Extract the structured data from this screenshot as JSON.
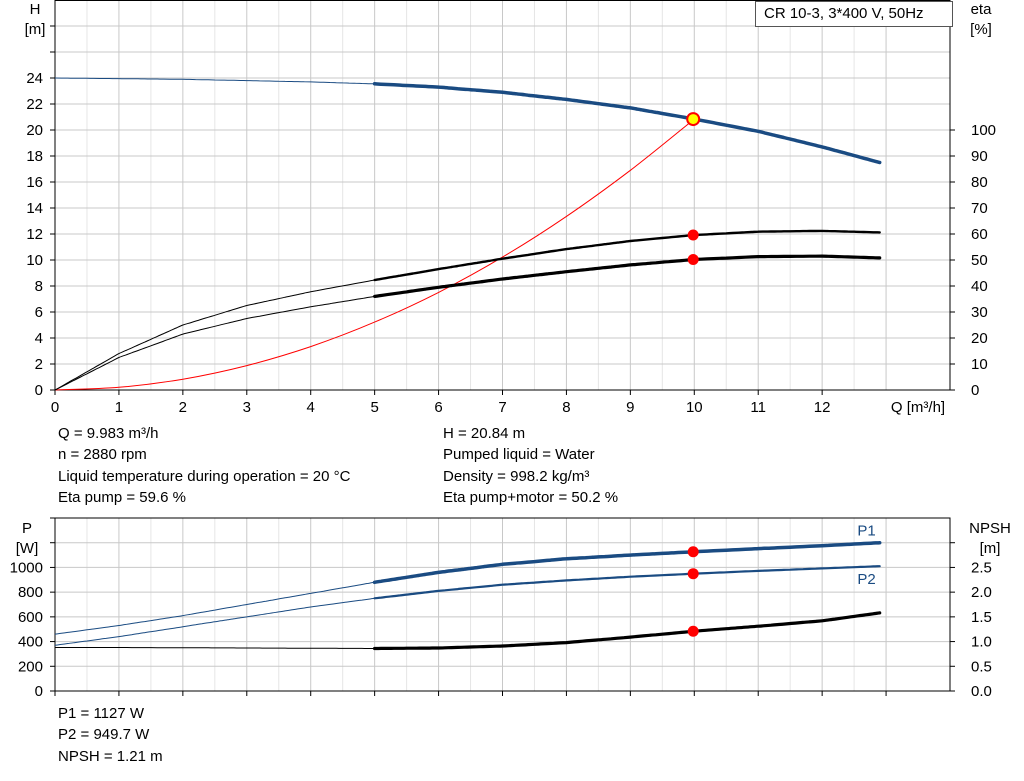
{
  "legend_label": "CR 10-3, 3*400 V, 50Hz",
  "top_info_left": [
    "Q = 9.983 m³/h",
    "n = 2880 rpm",
    "Liquid temperature during operation = 20 °C",
    "Eta pump = 59.6 %"
  ],
  "top_info_right": [
    "H = 20.84 m",
    "Pumped liquid = Water",
    "Density = 998.2 kg/m³",
    "Eta pump+motor = 50.2 %"
  ],
  "bottom_info": [
    "P1 = 1127 W",
    "P2 = 949.7 W",
    "NPSH = 1.21 m"
  ],
  "colors": {
    "head": "#1a4b82",
    "power": "#1a4b82",
    "efficiency": "#000000",
    "system": "#ff0000",
    "grid": "#c8c8c8",
    "marker": "#ff0000",
    "duty_marker": "#ffff00"
  },
  "chart_data": [
    {
      "type": "line",
      "xlabel": "Q [m³/h]",
      "ylabel_left": [
        "H",
        "[m]"
      ],
      "ylabel_right": [
        "eta",
        "[%]"
      ],
      "xlim": [
        0,
        14
      ],
      "ylim_left": [
        0,
        30
      ],
      "ylim_right": [
        0,
        150
      ],
      "xticks": [
        0,
        1,
        2,
        3,
        4,
        5,
        6,
        7,
        8,
        9,
        10,
        11,
        12
      ],
      "yticks_left": [
        0,
        2,
        4,
        6,
        8,
        10,
        12,
        14,
        16,
        18,
        20,
        22,
        24
      ],
      "yticks_right": [
        0,
        10,
        20,
        30,
        40,
        50,
        60,
        70,
        80,
        90,
        100
      ],
      "grid": true,
      "operating_point": {
        "q": 9.983,
        "h": 20.84,
        "eta_pump": 59.6,
        "eta_total": 50.2
      },
      "series": [
        {
          "axis": "left",
          "role": "head",
          "x": [
            0,
            1,
            2,
            3,
            4,
            5,
            6,
            7,
            8,
            9,
            10,
            11,
            12,
            12.9
          ],
          "values": [
            24.0,
            23.95,
            23.9,
            23.8,
            23.7,
            23.55,
            23.3,
            22.9,
            22.35,
            21.7,
            20.84,
            19.9,
            18.7,
            17.5
          ]
        },
        {
          "axis": "left",
          "role": "system",
          "x": [
            0,
            1,
            2,
            3,
            4,
            5,
            6,
            7,
            8,
            9,
            10
          ],
          "values": [
            0,
            0.21,
            0.83,
            1.88,
            3.34,
            5.22,
            7.51,
            10.22,
            13.35,
            16.9,
            20.84
          ]
        },
        {
          "axis": "right",
          "role": "eta_pump",
          "x": [
            0,
            1,
            2,
            3,
            4,
            5,
            6,
            7,
            8,
            9,
            10,
            11,
            12,
            12.9
          ],
          "values": [
            0,
            14,
            25,
            32.5,
            37.8,
            42.3,
            46.5,
            50.5,
            54.2,
            57.3,
            59.6,
            60.9,
            61.2,
            60.6
          ]
        },
        {
          "axis": "right",
          "role": "eta_total",
          "x": [
            0,
            1,
            2,
            3,
            4,
            5,
            6,
            7,
            8,
            9,
            10,
            11,
            12,
            12.9
          ],
          "values": [
            0,
            12.5,
            21.5,
            27.5,
            32,
            36,
            39.5,
            42.7,
            45.5,
            48.1,
            50.2,
            51.3,
            51.5,
            50.8
          ]
        }
      ]
    },
    {
      "type": "line",
      "xlim": [
        0,
        14
      ],
      "ylabel_left": [
        "P",
        "[W]"
      ],
      "ylabel_right": [
        "NPSH",
        "[m]"
      ],
      "ylim_left": [
        0,
        1400
      ],
      "ylim_right": [
        0,
        3.5
      ],
      "yticks_left": [
        0,
        200,
        400,
        600,
        800,
        1000
      ],
      "yticks_right": [
        "0.0",
        "0.5",
        "1.0",
        "1.5",
        "2.0",
        "2.5"
      ],
      "grid": true,
      "series": [
        {
          "axis": "left",
          "name": "P1",
          "x": [
            0,
            1,
            2,
            3,
            4,
            5,
            6,
            7,
            8,
            9,
            10,
            11,
            12,
            12.9
          ],
          "values": [
            460,
            530,
            610,
            700,
            790,
            880,
            960,
            1025,
            1070,
            1100,
            1127,
            1152,
            1176,
            1200
          ]
        },
        {
          "axis": "left",
          "name": "P2",
          "x": [
            0,
            1,
            2,
            3,
            4,
            5,
            6,
            7,
            8,
            9,
            10,
            11,
            12,
            12.9
          ],
          "values": [
            370,
            440,
            520,
            600,
            680,
            750,
            810,
            860,
            895,
            925,
            949.7,
            972,
            992,
            1010
          ]
        },
        {
          "axis": "right",
          "role": "npsh",
          "x": [
            0,
            1,
            2,
            3,
            4,
            5,
            6,
            7,
            8,
            9,
            10,
            11,
            12,
            12.9
          ],
          "values": [
            0.88,
            0.88,
            0.875,
            0.87,
            0.865,
            0.86,
            0.87,
            0.91,
            0.98,
            1.09,
            1.21,
            1.31,
            1.42,
            1.58
          ]
        }
      ]
    }
  ]
}
